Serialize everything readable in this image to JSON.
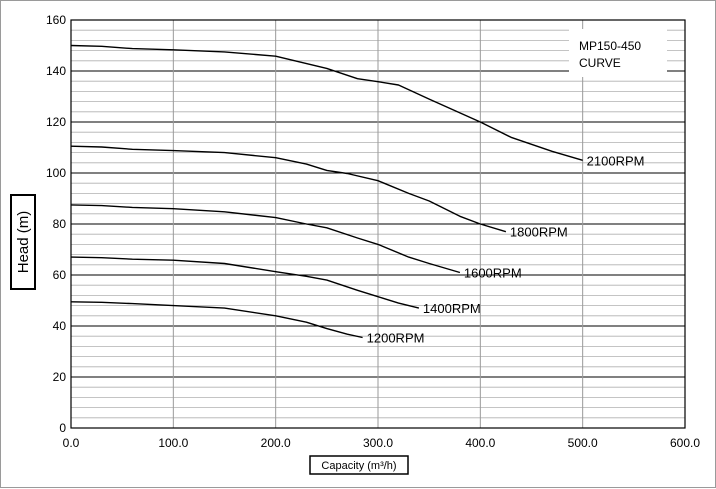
{
  "chart_data": {
    "type": "line",
    "title_lines": [
      "MP150-450",
      "CURVE"
    ],
    "xlabel": "Capacity (m³/h)",
    "ylabel": "Head (m)",
    "xlim": [
      0,
      600
    ],
    "ylim": [
      0,
      160
    ],
    "x_ticks": [
      0,
      100,
      200,
      300,
      400,
      500,
      600
    ],
    "x_tick_labels": [
      "0.0",
      "100.0",
      "200.0",
      "300.0",
      "400.0",
      "500.0",
      "600.0"
    ],
    "y_ticks": [
      0,
      20,
      40,
      60,
      80,
      100,
      120,
      140,
      160
    ],
    "y_tick_labels": [
      "0",
      "20",
      "40",
      "60",
      "80",
      "100",
      "120",
      "140",
      "160"
    ],
    "grid": true,
    "series": [
      {
        "name": "2100RPM",
        "x": [
          0,
          30,
          60,
          100,
          150,
          200,
          250,
          280,
          300,
          320,
          350,
          400,
          430,
          470,
          500
        ],
        "y": [
          150,
          149.7,
          148.8,
          148.3,
          147.5,
          145.8,
          141,
          137,
          135.8,
          134.5,
          129,
          120,
          114,
          108.5,
          105
        ]
      },
      {
        "name": "1800RPM",
        "x": [
          0,
          30,
          60,
          100,
          150,
          200,
          230,
          250,
          270,
          300,
          330,
          350,
          380,
          400,
          425
        ],
        "y": [
          110.5,
          110.2,
          109.3,
          108.8,
          108,
          106,
          103.5,
          101,
          99.8,
          97,
          92,
          89,
          83,
          80,
          77
        ]
      },
      {
        "name": "1600RPM",
        "x": [
          0,
          30,
          60,
          100,
          150,
          200,
          230,
          250,
          280,
          300,
          330,
          350,
          380
        ],
        "y": [
          87.5,
          87.2,
          86.5,
          86,
          84.8,
          82.5,
          80,
          78.5,
          74.5,
          72,
          67,
          64.5,
          61
        ]
      },
      {
        "name": "1400RPM",
        "x": [
          0,
          30,
          60,
          100,
          150,
          200,
          230,
          250,
          280,
          300,
          320,
          340
        ],
        "y": [
          67,
          66.8,
          66.2,
          65.8,
          64.5,
          61.3,
          59.5,
          58,
          54,
          51.5,
          49,
          47
        ]
      },
      {
        "name": "1200RPM",
        "x": [
          0,
          30,
          60,
          100,
          150,
          200,
          230,
          250,
          270,
          285
        ],
        "y": [
          49.5,
          49.3,
          48.8,
          48,
          47,
          44,
          41.5,
          39,
          36.8,
          35.5
        ]
      }
    ]
  }
}
